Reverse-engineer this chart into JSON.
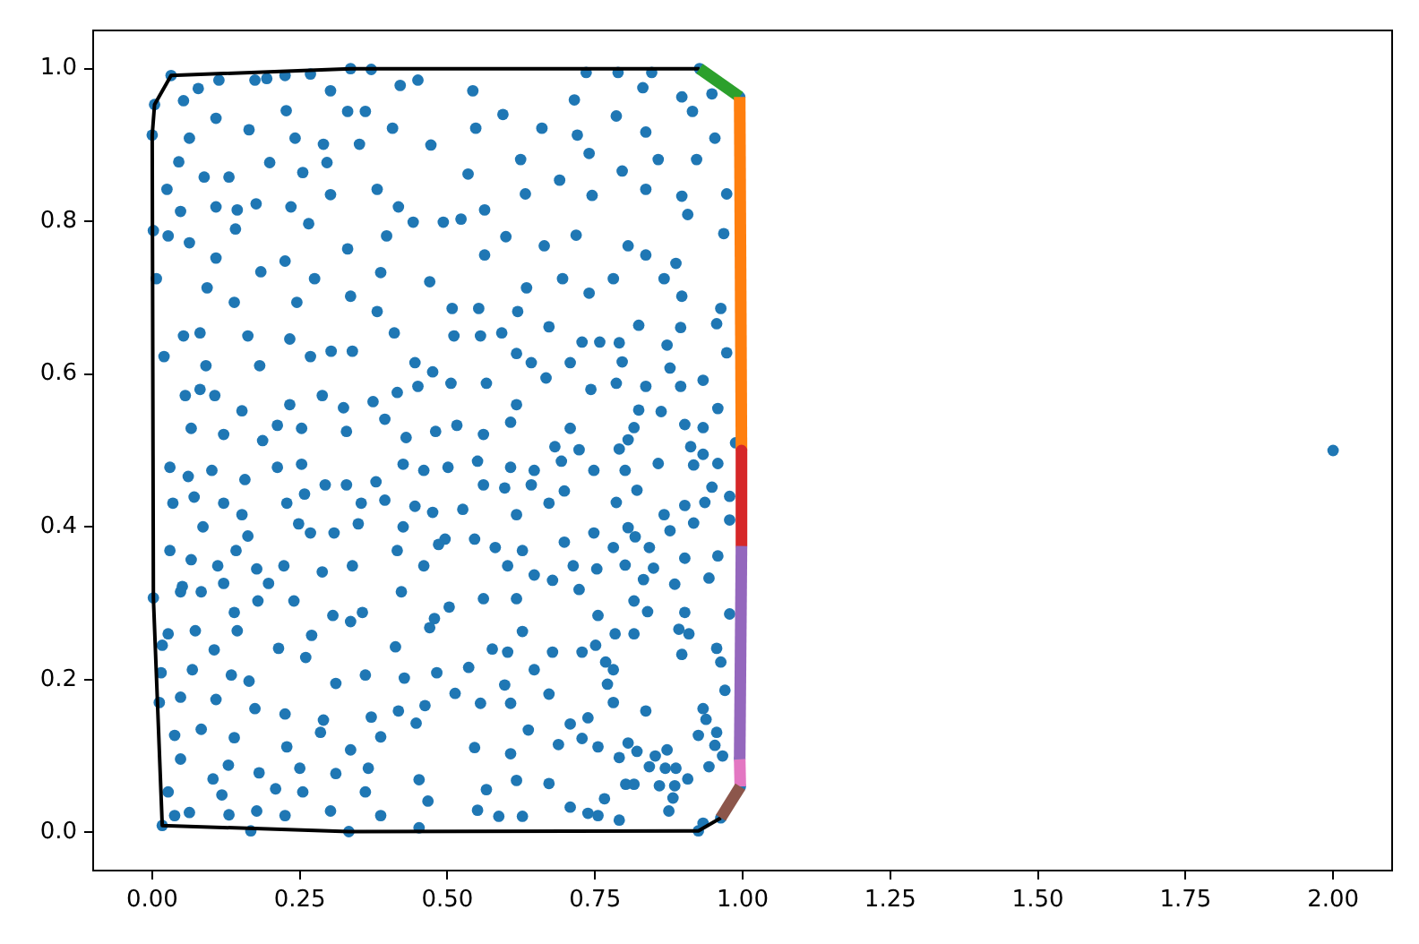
{
  "chart_data": {
    "type": "scatter",
    "xlim": [
      -0.1,
      2.1
    ],
    "ylim": [
      -0.05,
      1.05
    ],
    "xticks": [
      {
        "value": 0,
        "label": "0.00"
      },
      0.25,
      {
        "value": 0.5,
        "label": "0.50"
      },
      0.75,
      {
        "value": 1,
        "label": "1.00"
      },
      1.25,
      {
        "value": 1.5,
        "label": "1.50"
      },
      1.75,
      {
        "value": 2,
        "label": "2.00"
      }
    ],
    "yticks": [
      {
        "value": 0,
        "label": "0.0"
      },
      0.2,
      0.4,
      0.6,
      0.8,
      {
        "value": 1,
        "label": "1.0"
      }
    ],
    "series": [
      {
        "color": "#1f77b4",
        "marker": "circle",
        "x": [
          0.113,
          0.174,
          0.194,
          0.225,
          0.268,
          0.336,
          0.371,
          0.078,
          0.053,
          0.108,
          0.164,
          0.227,
          0.302,
          0.331,
          0.361,
          0.42,
          0.45,
          0.407,
          0.063,
          0.0,
          0.242,
          0.29,
          0.351,
          0.472,
          0.045,
          0.088,
          0.13,
          0.199,
          0.255,
          0.296,
          0.381,
          0.025,
          0.108,
          0.144,
          0.176,
          0.235,
          0.302,
          0.417,
          0.048,
          0.002,
          0.027,
          0.063,
          0.141,
          0.184,
          0.265,
          0.331,
          0.397,
          0.442,
          0.493,
          0.108,
          0.225,
          0.275,
          0.336,
          0.387,
          0.47,
          0.007,
          0.093,
          0.139,
          0.245,
          0.381,
          0.508,
          0.032,
          0.004,
          0.735,
          0.789,
          0.846,
          0.897,
          0.543,
          0.715,
          0.831,
          0.948,
          0.594,
          0.548,
          0.66,
          0.72,
          0.786,
          0.836,
          0.915,
          0.953,
          0.624,
          0.74,
          0.796,
          0.857,
          0.922,
          0.535,
          0.69,
          0.836,
          0.897,
          0.973,
          0.632,
          0.745,
          0.563,
          0.523,
          0.907,
          0.806,
          0.718,
          0.599,
          0.968,
          0.664,
          0.836,
          0.887,
          0.563,
          0.634,
          0.695,
          0.781,
          0.867,
          0.74,
          0.963,
          0.553,
          0.619,
          0.897,
          0.927,
          0.995,
          0.824,
          0.895,
          0.956,
          0.791,
          0.872,
          0.973,
          0.796,
          0.877,
          0.933,
          0.836,
          0.786,
          0.895,
          0.958,
          0.862,
          0.824,
          0.902,
          0.933,
          0.816,
          0.791,
          0.806,
          0.912,
          0.933,
          0.988,
          0.857,
          0.958,
          0.801,
          0.917,
          0.821,
          0.948,
          0.978,
          0.786,
          0.902,
          0.936,
          0.867,
          0.978,
          0.917,
          0.806,
          0.818,
          0.877,
          0.781,
          0.958,
          0.902,
          0.801,
          0.842,
          0.849,
          0.943,
          0.885,
          0.832,
          0.816,
          0.755,
          0.839,
          0.902,
          0.978,
          0.892,
          0.784,
          0.816,
          0.909,
          0.751,
          0.956,
          0.897,
          0.768,
          0.781,
          0.963,
          0.771,
          0.97,
          0.781,
          0.836,
          0.933,
          0.938,
          0.925,
          0.956,
          0.953,
          0.966,
          0.755,
          0.806,
          0.821,
          0.872,
          0.852,
          0.791,
          0.842,
          0.869,
          0.887,
          0.943,
          0.802,
          0.816,
          0.859,
          0.885,
          0.907,
          0.882,
          0.766,
          0.875,
          0.755,
          0.791,
          0.925,
          0.933,
          0.995,
          0.996,
          0.963,
          0.002,
          0.048,
          0.083,
          0.139,
          0.179,
          0.24,
          0.306,
          0.356,
          0.422,
          0.478,
          0.503,
          0.027,
          0.073,
          0.105,
          0.144,
          0.214,
          0.27,
          0.336,
          0.412,
          0.47,
          0.017,
          0.015,
          0.068,
          0.134,
          0.164,
          0.26,
          0.311,
          0.361,
          0.427,
          0.482,
          0.513,
          0.012,
          0.048,
          0.108,
          0.174,
          0.225,
          0.29,
          0.371,
          0.417,
          0.462,
          0.038,
          0.083,
          0.139,
          0.228,
          0.285,
          0.336,
          0.387,
          0.447,
          0.048,
          0.129,
          0.181,
          0.25,
          0.311,
          0.366,
          0.452,
          0.027,
          0.103,
          0.118,
          0.209,
          0.255,
          0.361,
          0.467,
          0.038,
          0.063,
          0.13,
          0.177,
          0.225,
          0.302,
          0.387,
          0.167,
          0.333,
          0.452,
          0.017,
          0.053,
          0.081,
          0.162,
          0.233,
          0.268,
          0.303,
          0.339,
          0.41,
          0.445,
          0.511,
          0.182,
          0.091,
          0.02,
          0.475,
          0.056,
          0.106,
          0.081,
          0.152,
          0.233,
          0.288,
          0.324,
          0.374,
          0.415,
          0.45,
          0.506,
          0.066,
          0.121,
          0.187,
          0.212,
          0.253,
          0.329,
          0.394,
          0.43,
          0.48,
          0.516,
          0.03,
          0.061,
          0.101,
          0.157,
          0.212,
          0.253,
          0.293,
          0.329,
          0.379,
          0.425,
          0.46,
          0.501,
          0.035,
          0.071,
          0.121,
          0.152,
          0.228,
          0.258,
          0.354,
          0.394,
          0.445,
          0.475,
          0.526,
          0.086,
          0.162,
          0.248,
          0.268,
          0.308,
          0.349,
          0.425,
          0.496,
          0.03,
          0.066,
          0.111,
          0.142,
          0.177,
          0.223,
          0.288,
          0.339,
          0.415,
          0.46,
          0.485,
          0.051,
          0.121,
          0.197,
          0.556,
          0.592,
          0.617,
          0.672,
          0.708,
          0.728,
          0.758,
          0.642,
          0.566,
          0.617,
          0.667,
          0.743,
          0.561,
          0.607,
          0.708,
          0.682,
          0.723,
          0.551,
          0.607,
          0.647,
          0.693,
          0.748,
          0.561,
          0.597,
          0.642,
          0.698,
          0.617,
          0.672,
          0.546,
          0.581,
          0.627,
          0.698,
          0.748,
          0.602,
          0.647,
          0.713,
          0.753,
          0.561,
          0.617,
          0.678,
          0.723,
          0.627,
          0.576,
          0.536,
          0.602,
          0.647,
          0.678,
          0.728,
          0.556,
          0.597,
          0.607,
          0.672,
          0.708,
          0.738,
          0.546,
          0.607,
          0.637,
          0.688,
          0.728,
          0.617,
          0.566,
          0.672,
          0.708,
          0.551,
          0.587,
          0.627,
          0.738,
          2.0
        ],
        "values": [
          0.985,
          0.985,
          0.987,
          0.991,
          0.993,
          1.0,
          0.999,
          0.974,
          0.958,
          0.935,
          0.92,
          0.945,
          0.971,
          0.944,
          0.944,
          0.978,
          0.985,
          0.922,
          0.909,
          0.913,
          0.909,
          0.901,
          0.901,
          0.9,
          0.878,
          0.858,
          0.858,
          0.877,
          0.864,
          0.877,
          0.842,
          0.842,
          0.819,
          0.815,
          0.823,
          0.819,
          0.835,
          0.819,
          0.813,
          0.788,
          0.781,
          0.772,
          0.79,
          0.734,
          0.797,
          0.764,
          0.781,
          0.799,
          0.799,
          0.752,
          0.748,
          0.725,
          0.702,
          0.733,
          0.721,
          0.725,
          0.713,
          0.694,
          0.694,
          0.682,
          0.686,
          0.991,
          0.953,
          0.995,
          0.995,
          0.995,
          0.963,
          0.971,
          0.959,
          0.975,
          0.967,
          0.94,
          0.922,
          0.922,
          0.913,
          0.938,
          0.917,
          0.944,
          0.909,
          0.881,
          0.889,
          0.866,
          0.881,
          0.881,
          0.862,
          0.854,
          0.842,
          0.833,
          0.836,
          0.836,
          0.834,
          0.815,
          0.803,
          0.809,
          0.768,
          0.782,
          0.78,
          0.784,
          0.768,
          0.756,
          0.745,
          0.756,
          0.713,
          0.725,
          0.725,
          0.725,
          0.706,
          0.686,
          0.686,
          0.682,
          0.702,
          1.0,
          0.963,
          0.664,
          0.661,
          0.666,
          0.641,
          0.638,
          0.628,
          0.616,
          0.608,
          0.592,
          0.584,
          0.588,
          0.584,
          0.555,
          0.551,
          0.553,
          0.534,
          0.53,
          0.53,
          0.502,
          0.514,
          0.505,
          0.495,
          0.51,
          0.483,
          0.483,
          0.474,
          0.481,
          0.448,
          0.452,
          0.44,
          0.432,
          0.428,
          0.432,
          0.416,
          0.409,
          0.405,
          0.399,
          0.387,
          0.395,
          0.373,
          0.362,
          0.359,
          0.35,
          0.373,
          0.346,
          0.333,
          0.325,
          0.331,
          0.303,
          0.284,
          0.289,
          0.288,
          0.286,
          0.266,
          0.26,
          0.26,
          0.26,
          0.245,
          0.241,
          0.233,
          0.223,
          0.213,
          0.223,
          0.194,
          0.186,
          0.17,
          0.159,
          0.162,
          0.148,
          0.127,
          0.131,
          0.114,
          0.1,
          0.112,
          0.117,
          0.106,
          0.108,
          0.1,
          0.098,
          0.086,
          0.084,
          0.084,
          0.086,
          0.063,
          0.063,
          0.061,
          0.061,
          0.07,
          0.045,
          0.044,
          0.028,
          0.022,
          0.016,
          0.002,
          0.012,
          0.096,
          0.06,
          0.019,
          0.307,
          0.315,
          0.315,
          0.288,
          0.303,
          0.303,
          0.284,
          0.288,
          0.315,
          0.28,
          0.295,
          0.26,
          0.264,
          0.239,
          0.264,
          0.241,
          0.258,
          0.276,
          0.243,
          0.268,
          0.245,
          0.209,
          0.213,
          0.206,
          0.198,
          0.229,
          0.195,
          0.206,
          0.202,
          0.209,
          0.182,
          0.17,
          0.177,
          0.174,
          0.162,
          0.155,
          0.147,
          0.151,
          0.159,
          0.166,
          0.127,
          0.135,
          0.124,
          0.112,
          0.131,
          0.108,
          0.125,
          0.143,
          0.096,
          0.088,
          0.078,
          0.084,
          0.077,
          0.084,
          0.069,
          0.053,
          0.07,
          0.049,
          0.057,
          0.053,
          0.053,
          0.041,
          0.022,
          0.026,
          0.023,
          0.028,
          0.022,
          0.028,
          0.022,
          0.002,
          0.001,
          0.006,
          0.009,
          0.65,
          0.654,
          0.65,
          0.646,
          0.623,
          0.63,
          0.63,
          0.654,
          0.615,
          0.65,
          0.611,
          0.611,
          0.623,
          0.603,
          0.572,
          0.572,
          0.58,
          0.552,
          0.56,
          0.572,
          0.556,
          0.564,
          0.576,
          0.584,
          0.588,
          0.529,
          0.521,
          0.513,
          0.533,
          0.529,
          0.525,
          0.541,
          0.517,
          0.525,
          0.533,
          0.478,
          0.466,
          0.474,
          0.462,
          0.478,
          0.482,
          0.455,
          0.455,
          0.459,
          0.482,
          0.474,
          0.478,
          0.431,
          0.439,
          0.431,
          0.416,
          0.431,
          0.443,
          0.431,
          0.435,
          0.427,
          0.419,
          0.423,
          0.4,
          0.388,
          0.404,
          0.392,
          0.392,
          0.404,
          0.4,
          0.384,
          0.369,
          0.357,
          0.349,
          0.369,
          0.345,
          0.349,
          0.341,
          0.349,
          0.369,
          0.349,
          0.377,
          0.322,
          0.326,
          0.326,
          0.65,
          0.654,
          0.627,
          0.662,
          0.615,
          0.642,
          0.642,
          0.615,
          0.588,
          0.56,
          0.595,
          0.58,
          0.521,
          0.537,
          0.529,
          0.505,
          0.501,
          0.486,
          0.478,
          0.474,
          0.486,
          0.474,
          0.455,
          0.451,
          0.455,
          0.447,
          0.416,
          0.431,
          0.384,
          0.373,
          0.369,
          0.38,
          0.392,
          0.349,
          0.337,
          0.349,
          0.345,
          0.306,
          0.306,
          0.33,
          0.318,
          0.263,
          0.24,
          0.216,
          0.236,
          0.213,
          0.236,
          0.236,
          0.169,
          0.193,
          0.169,
          0.181,
          0.142,
          0.15,
          0.111,
          0.103,
          0.134,
          0.115,
          0.123,
          0.068,
          0.056,
          0.064,
          0.033,
          0.029,
          0.021,
          0.021,
          0.025,
          0.5
        ]
      },
      {
        "type": "line",
        "color": "#000000",
        "x": [
          0.927,
          0.336,
          0.032,
          0.004,
          0.0,
          0.002,
          0.017,
          0.333,
          0.925,
          0.963
        ],
        "values": [
          1.0,
          1.0,
          0.991,
          0.953,
          0.913,
          0.307,
          0.009,
          0.001,
          0.002,
          0.019
        ]
      },
      {
        "type": "line",
        "color": "#2ca02c",
        "x": [
          0.927,
          0.995
        ],
        "values": [
          1.0,
          0.963
        ]
      },
      {
        "type": "line",
        "color": "#ff7f0e",
        "x": [
          0.995,
          0.998
        ],
        "values": [
          0.963,
          0.5
        ]
      },
      {
        "type": "line",
        "color": "#d62728",
        "x": [
          0.998,
          0.998
        ],
        "values": [
          0.5,
          0.375
        ]
      },
      {
        "type": "line",
        "color": "#9467bd",
        "x": [
          0.998,
          0.995
        ],
        "values": [
          0.375,
          0.096
        ]
      },
      {
        "type": "line",
        "color": "#e377c2",
        "x": [
          0.995,
          0.996
        ],
        "values": [
          0.096,
          0.06
        ]
      },
      {
        "type": "line",
        "color": "#8c564b",
        "x": [
          0.996,
          0.963
        ],
        "values": [
          0.06,
          0.019
        ]
      }
    ]
  }
}
